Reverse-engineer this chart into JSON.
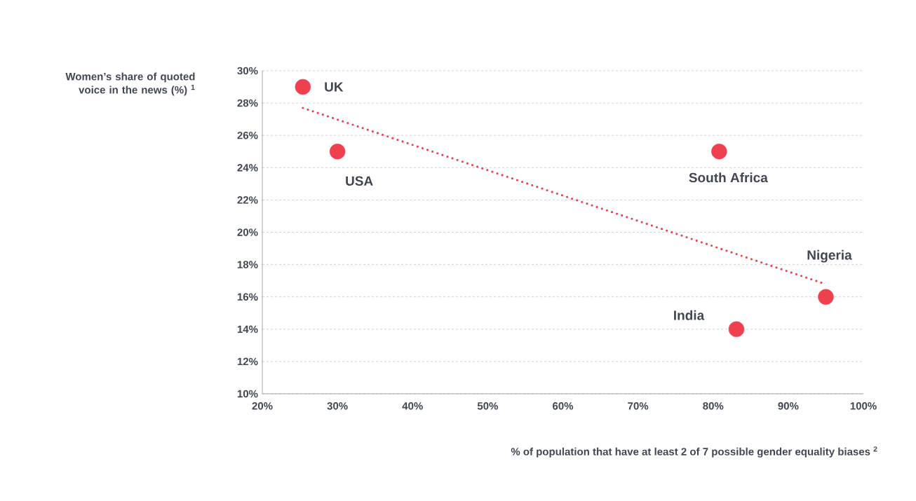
{
  "chart_data": {
    "type": "scatter",
    "xlabel": "% of population that have at least 2 of 7 possible gender equality biases $^{2}$",
    "ylabel": "Women’s share of quoted voice in the news (%) $^{1}$",
    "xlim": [
      20,
      100
    ],
    "ylim": [
      10,
      30
    ],
    "xticks": [
      {
        "value": 20,
        "label": "20%"
      },
      {
        "value": 30,
        "label": "30%"
      },
      {
        "value": 40,
        "label": "40%"
      },
      {
        "value": 50,
        "label": "50%"
      },
      {
        "value": 60,
        "label": "60%"
      },
      {
        "value": 70,
        "label": "70%"
      },
      {
        "value": 80,
        "label": "80%"
      },
      {
        "value": 90,
        "label": "90%"
      },
      {
        "value": 100,
        "label": "100%"
      }
    ],
    "yticks": [
      {
        "value": 10,
        "label": "10%"
      },
      {
        "value": 12,
        "label": "12%"
      },
      {
        "value": 14,
        "label": "14%"
      },
      {
        "value": 16,
        "label": "16%"
      },
      {
        "value": 18,
        "label": "18%"
      },
      {
        "value": 20,
        "label": "20%"
      },
      {
        "value": 22,
        "label": "22%"
      },
      {
        "value": 24,
        "label": "24%"
      },
      {
        "value": 26,
        "label": "26%"
      },
      {
        "value": 28,
        "label": "28%"
      },
      {
        "value": 30,
        "label": "30%"
      }
    ],
    "grid": "y",
    "marker": "circle",
    "series": [
      {
        "color": "#ef4050",
        "x": [
          25.4,
          30,
          80.8,
          83.1,
          95
        ],
        "values": [
          29,
          25,
          25,
          14,
          16
        ]
      },
      {
        "type": "line",
        "color": "#ef4050",
        "line_style": "dotted",
        "marker": "none",
        "x": [
          25.4,
          94.6
        ],
        "values": [
          27.7,
          16.85
        ]
      }
    ],
    "annotations": [
      {
        "text": "UK",
        "x": 25.4,
        "y": 29
      },
      {
        "text": "USA",
        "x": 30,
        "y": 25
      },
      {
        "text": "South Africa",
        "x": 80.8,
        "y": 25
      },
      {
        "text": "Nigeria",
        "x": 95,
        "y": 16
      },
      {
        "text": "India",
        "x": 83.1,
        "y": 14
      }
    ]
  }
}
